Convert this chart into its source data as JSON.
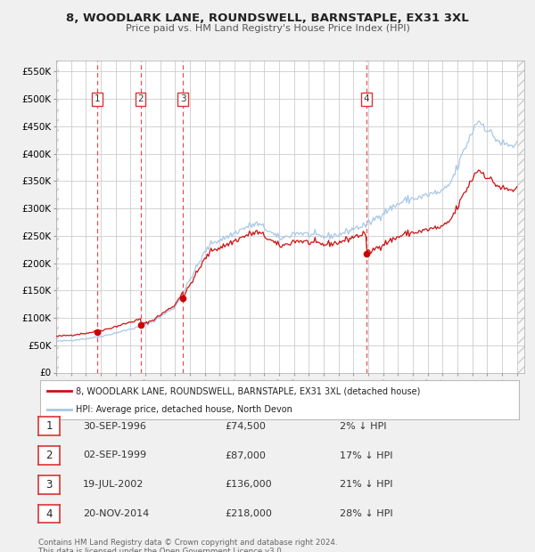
{
  "title": "8, WOODLARK LANE, ROUNDSWELL, BARNSTAPLE, EX31 3XL",
  "subtitle": "Price paid vs. HM Land Registry's House Price Index (HPI)",
  "bg_color": "#f0f0f0",
  "plot_bg_color": "#ffffff",
  "grid_color": "#cccccc",
  "hpi_color": "#a8c8e8",
  "price_color": "#cc1111",
  "sale_marker_color": "#cc0000",
  "vline_color": "#dd3333",
  "yticks": [
    0,
    50000,
    100000,
    150000,
    200000,
    250000,
    300000,
    350000,
    400000,
    450000,
    500000,
    550000
  ],
  "ytick_labels": [
    "£0",
    "£50K",
    "£100K",
    "£150K",
    "£200K",
    "£250K",
    "£300K",
    "£350K",
    "£400K",
    "£450K",
    "£500K",
    "£550K"
  ],
  "xlim_start": 1994.0,
  "xlim_end": 2025.5,
  "ylim_min": 0,
  "ylim_max": 570000,
  "sales": [
    {
      "num": 1,
      "date_str": "30-SEP-1996",
      "year": 1996.75,
      "price": 74500
    },
    {
      "num": 2,
      "date_str": "02-SEP-1999",
      "year": 1999.67,
      "price": 87000
    },
    {
      "num": 3,
      "date_str": "19-JUL-2002",
      "year": 2002.54,
      "price": 136000
    },
    {
      "num": 4,
      "date_str": "20-NOV-2014",
      "year": 2014.89,
      "price": 218000
    }
  ],
  "legend_label_price": "8, WOODLARK LANE, ROUNDSWELL, BARNSTAPLE, EX31 3XL (detached house)",
  "legend_label_hpi": "HPI: Average price, detached house, North Devon",
  "footer_line1": "Contains HM Land Registry data © Crown copyright and database right 2024.",
  "footer_line2": "This data is licensed under the Open Government Licence v3.0.",
  "table_rows": [
    [
      "1",
      "30-SEP-1996",
      "£74,500",
      "2% ↓ HPI"
    ],
    [
      "2",
      "02-SEP-1999",
      "£87,000",
      "17% ↓ HPI"
    ],
    [
      "3",
      "19-JUL-2002",
      "£136,000",
      "21% ↓ HPI"
    ],
    [
      "4",
      "20-NOV-2014",
      "£218,000",
      "28% ↓ HPI"
    ]
  ],
  "hpi_keypoints": [
    [
      1994.0,
      57000
    ],
    [
      1995.0,
      59000
    ],
    [
      1996.0,
      62000
    ],
    [
      1996.75,
      65000
    ],
    [
      1997.5,
      69000
    ],
    [
      1998.5,
      76000
    ],
    [
      1999.67,
      84000
    ],
    [
      2000.5,
      93000
    ],
    [
      2001.0,
      102000
    ],
    [
      2002.0,
      120000
    ],
    [
      2002.54,
      145000
    ],
    [
      2003.0,
      170000
    ],
    [
      2003.5,
      195000
    ],
    [
      2004.0,
      220000
    ],
    [
      2004.5,
      238000
    ],
    [
      2005.0,
      242000
    ],
    [
      2005.5,
      248000
    ],
    [
      2006.0,
      255000
    ],
    [
      2006.5,
      262000
    ],
    [
      2007.0,
      268000
    ],
    [
      2007.5,
      272000
    ],
    [
      2008.0,
      265000
    ],
    [
      2008.5,
      255000
    ],
    [
      2009.0,
      245000
    ],
    [
      2009.5,
      248000
    ],
    [
      2010.0,
      255000
    ],
    [
      2010.5,
      255000
    ],
    [
      2011.0,
      252000
    ],
    [
      2011.5,
      250000
    ],
    [
      2012.0,
      248000
    ],
    [
      2012.5,
      250000
    ],
    [
      2013.0,
      252000
    ],
    [
      2013.5,
      257000
    ],
    [
      2014.0,
      263000
    ],
    [
      2014.89,
      270000
    ],
    [
      2015.5,
      282000
    ],
    [
      2016.0,
      292000
    ],
    [
      2016.5,
      300000
    ],
    [
      2017.0,
      308000
    ],
    [
      2017.5,
      315000
    ],
    [
      2018.0,
      318000
    ],
    [
      2018.5,
      320000
    ],
    [
      2019.0,
      325000
    ],
    [
      2019.5,
      328000
    ],
    [
      2020.0,
      330000
    ],
    [
      2020.5,
      345000
    ],
    [
      2021.0,
      375000
    ],
    [
      2021.5,
      410000
    ],
    [
      2022.0,
      440000
    ],
    [
      2022.3,
      460000
    ],
    [
      2022.7,
      455000
    ],
    [
      2023.0,
      445000
    ],
    [
      2023.3,
      435000
    ],
    [
      2023.7,
      425000
    ],
    [
      2024.0,
      418000
    ],
    [
      2024.5,
      415000
    ],
    [
      2025.0,
      415000
    ]
  ]
}
